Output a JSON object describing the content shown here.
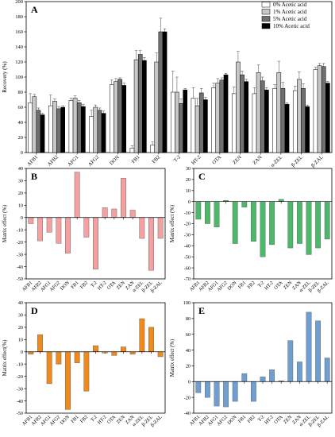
{
  "chart_data": [
    {
      "panel": "A",
      "type": "bar",
      "ylabel": "Recovery (%)",
      "ylim": [
        0,
        200
      ],
      "yticks": [
        0,
        20,
        40,
        60,
        80,
        100,
        120,
        140,
        160,
        180,
        200
      ],
      "legend_position": "top-right",
      "categories": [
        "AFB1",
        "AFB2",
        "AFG1",
        "AFG2",
        "DON",
        "FB1",
        "FB2",
        "T-2",
        "HT-2",
        "OTA",
        "ZEN",
        "ZAN",
        "α-ZEL",
        "β-ZEL",
        "β-ZAL"
      ],
      "series": [
        {
          "name": "0% Acetic acid",
          "color": "#ffffff",
          "values": [
            66,
            62,
            69,
            48,
            90,
            6,
            10,
            80,
            72,
            86,
            78,
            78,
            85,
            82,
            110
          ],
          "errors": [
            12,
            14,
            3,
            8,
            6,
            3,
            4,
            28,
            14,
            6,
            9,
            8,
            5,
            6,
            3
          ]
        },
        {
          "name": "1% Acetic acid",
          "color": "#c8c8c8",
          "values": [
            74,
            68,
            72,
            60,
            94,
            123,
            120,
            80,
            62,
            92,
            120,
            106,
            106,
            97,
            115
          ],
          "errors": [
            3,
            3,
            3,
            3,
            4,
            12,
            12,
            20,
            10,
            6,
            14,
            10,
            15,
            10,
            3
          ]
        },
        {
          "name": "5% Acetic acid",
          "color": "#707070",
          "values": [
            56,
            58,
            66,
            56,
            97,
            130,
            160,
            65,
            79,
            96,
            103,
            95,
            85,
            85,
            114
          ],
          "errors": [
            3,
            3,
            3,
            3,
            2,
            5,
            18,
            6,
            6,
            3,
            5,
            5,
            8,
            6,
            4
          ]
        },
        {
          "name": "10% Acetic acid",
          "color": "#000000",
          "values": [
            50,
            60,
            61,
            52,
            89,
            122,
            160,
            83,
            70,
            103,
            94,
            83,
            64,
            61,
            92
          ],
          "errors": [
            2,
            2,
            3,
            3,
            3,
            4,
            4,
            2,
            3,
            2,
            3,
            3,
            2,
            2,
            2
          ]
        }
      ]
    },
    {
      "panel": "B",
      "type": "bar",
      "ylabel": "Matrix effect (%)",
      "ylim": [
        -50,
        40
      ],
      "yticks": [
        -50,
        -40,
        -30,
        -20,
        -10,
        0,
        10,
        20,
        30,
        40
      ],
      "color": "#f4a0a0",
      "categories": [
        "AFB1",
        "AFB2",
        "AFG1",
        "AFG2",
        "DON",
        "FB1",
        "FB2",
        "T-2",
        "HT-2",
        "OTA",
        "ZEN",
        "ZAN",
        "α-ZEL",
        "β-ZEL",
        "β-ZAL"
      ],
      "values": [
        -5,
        -19,
        -12,
        -21,
        -29,
        37,
        -16,
        -42,
        8,
        7,
        32,
        6,
        -17,
        -43,
        -17
      ]
    },
    {
      "panel": "C",
      "type": "bar",
      "ylabel": "Matrix effect (%)",
      "ylim": [
        -70,
        30
      ],
      "yticks": [
        -70,
        -60,
        -50,
        -40,
        -30,
        -20,
        -10,
        0,
        10,
        20,
        30
      ],
      "color": "#4cb86a",
      "categories": [
        "AFB1",
        "AFB2",
        "AFG1",
        "AFG2",
        "DON",
        "FB1",
        "FB2",
        "T-2",
        "HT-2",
        "OTA",
        "ZEN",
        "ZAN",
        "α-ZEL",
        "β-ZEL",
        "β-ZAL"
      ],
      "values": [
        -16,
        -20,
        -23,
        1,
        -38,
        -5,
        -36,
        -50,
        -39,
        2,
        -42,
        -38,
        -48,
        -42,
        -34
      ]
    },
    {
      "panel": "D",
      "type": "bar",
      "ylabel": "Matrix effect(%)",
      "ylim": [
        -50,
        40
      ],
      "yticks": [
        -50,
        -40,
        -30,
        -20,
        -10,
        0,
        10,
        20,
        30,
        40
      ],
      "color": "#f08a1c",
      "categories": [
        "AFB1",
        "AFB2",
        "AFG1",
        "AFG2",
        "DON",
        "FB1",
        "FB2",
        "T-2",
        "HT-2",
        "OTA",
        "ZEN",
        "ZAN",
        "α-ZEL",
        "β-ZEL",
        "β-ZAL"
      ],
      "values": [
        -2,
        14,
        -26,
        -10,
        -47,
        -9,
        -32,
        5,
        -1,
        -3,
        4,
        -2,
        27,
        20,
        -4
      ]
    },
    {
      "panel": "E",
      "type": "bar",
      "ylabel": "Matrix effect (%)",
      "ylim": [
        -40,
        100
      ],
      "yticks": [
        -40,
        -20,
        0,
        20,
        40,
        60,
        80,
        100
      ],
      "color": "#6f9fd0",
      "categories": [
        "AFB1",
        "AFB2",
        "AFG1",
        "AFG2",
        "DON",
        "FB1",
        "FB2",
        "T-2",
        "HT-2",
        "OTA",
        "ZEN",
        "ZAN",
        "α-ZEL",
        "β-ZEL",
        "β-ZAL"
      ],
      "values": [
        -14,
        -20,
        -31,
        -32,
        -25,
        10,
        -25,
        6,
        15,
        1,
        52,
        25,
        88,
        77,
        30
      ]
    }
  ]
}
